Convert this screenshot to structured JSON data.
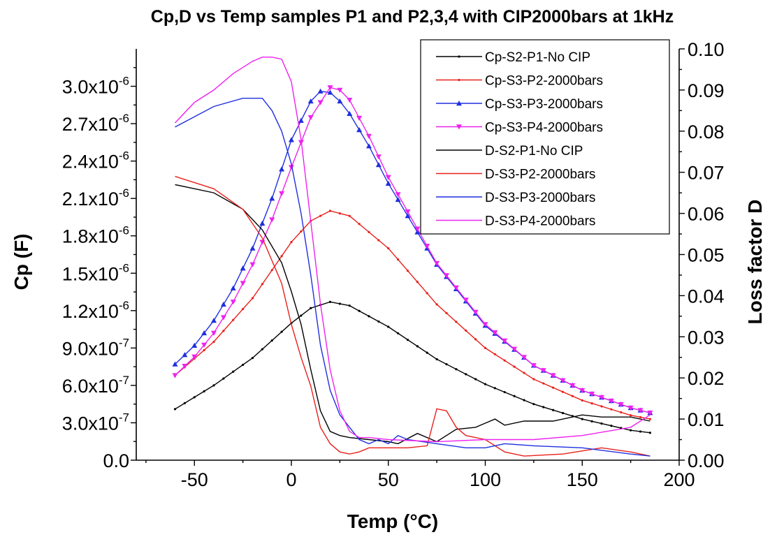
{
  "chart_data": {
    "type": "line",
    "title": "Cp,D vs Temp samples P1 and P2,3,4 with CIP2000bars at 1kHz",
    "xlabel": "Temp (°C)",
    "ylabel": "Cp (F)",
    "y2label": "Loss factor D",
    "xlim": [
      -80,
      200
    ],
    "ylim": [
      0,
      3.3e-06
    ],
    "y2lim": [
      0,
      0.1
    ],
    "x_ticks": [
      -50,
      0,
      50,
      100,
      150,
      200
    ],
    "y_ticks": [
      {
        "value": 0,
        "mant": "0.0",
        "exp": ""
      },
      {
        "value": 3e-07,
        "mant": "3.0x10",
        "exp": "-7"
      },
      {
        "value": 6e-07,
        "mant": "6.0x10",
        "exp": "-7"
      },
      {
        "value": 9e-07,
        "mant": "9.0x10",
        "exp": "-7"
      },
      {
        "value": 1.2e-06,
        "mant": "1.2x10",
        "exp": "-6"
      },
      {
        "value": 1.5e-06,
        "mant": "1.5x10",
        "exp": "-6"
      },
      {
        "value": 1.8e-06,
        "mant": "1.8x10",
        "exp": "-6"
      },
      {
        "value": 2.1e-06,
        "mant": "2.1x10",
        "exp": "-6"
      },
      {
        "value": 2.4e-06,
        "mant": "2.4x10",
        "exp": "-6"
      },
      {
        "value": 2.7e-06,
        "mant": "2.7x10",
        "exp": "-6"
      },
      {
        "value": 3e-06,
        "mant": "3.0x10",
        "exp": "-6"
      }
    ],
    "y2_ticks": [
      "0.00",
      "0.01",
      "0.02",
      "0.03",
      "0.04",
      "0.05",
      "0.06",
      "0.07",
      "0.08",
      "0.09",
      "0.10"
    ],
    "legend_position": "top-right",
    "series": [
      {
        "name": "Cp-S2-P1-No CIP",
        "axis": "left",
        "color": "#000000",
        "marker": "dot",
        "x": [
          -60,
          -40,
          -20,
          0,
          10,
          20,
          30,
          50,
          75,
          100,
          125,
          150,
          175,
          185
        ],
        "y": [
          4.1e-07,
          6e-07,
          8.2e-07,
          1.1e-06,
          1.22e-06,
          1.27e-06,
          1.24e-06,
          1.07e-06,
          8.1e-07,
          6.1e-07,
          4.5e-07,
          3.3e-07,
          2.4e-07,
          2.2e-07
        ]
      },
      {
        "name": "Cp-S3-P2-2000bars",
        "axis": "left",
        "color": "#e8201a",
        "marker": "dot",
        "x": [
          -60,
          -40,
          -20,
          0,
          10,
          20,
          30,
          50,
          75,
          100,
          125,
          150,
          175,
          185
        ],
        "y": [
          6.8e-07,
          9.5e-07,
          1.3e-06,
          1.75e-06,
          1.92e-06,
          2e-06,
          1.96e-06,
          1.7e-06,
          1.25e-06,
          9e-07,
          6.5e-07,
          4.8e-07,
          3.6e-07,
          3.3e-07
        ]
      },
      {
        "name": "Cp-S3-P3-2000bars",
        "axis": "left",
        "color": "#1f2fe0",
        "marker": "triangle-up",
        "x": [
          -60,
          -50,
          -40,
          -30,
          -20,
          -10,
          0,
          10,
          15,
          20,
          25,
          30,
          40,
          50,
          75,
          100,
          125,
          150,
          175,
          185
        ],
        "y": [
          7.7e-07,
          9.2e-07,
          1.12e-06,
          1.38e-06,
          1.7e-06,
          2.1e-06,
          2.57e-06,
          2.88e-06,
          2.96e-06,
          2.95e-06,
          2.88e-06,
          2.78e-06,
          2.52e-06,
          2.22e-06,
          1.57e-06,
          1.08e-06,
          7.6e-07,
          5.6e-07,
          4.2e-07,
          3.8e-07
        ]
      },
      {
        "name": "Cp-S3-P4-2000bars",
        "axis": "left",
        "color": "#ee22ee",
        "marker": "triangle-down",
        "x": [
          -60,
          -50,
          -40,
          -30,
          -20,
          -10,
          0,
          10,
          20,
          25,
          30,
          40,
          50,
          75,
          100,
          125,
          150,
          175,
          185
        ],
        "y": [
          6.8e-07,
          8.3e-07,
          1.02e-06,
          1.27e-06,
          1.57e-06,
          1.93e-06,
          2.35e-06,
          2.75e-06,
          2.99e-06,
          2.97e-06,
          2.89e-06,
          2.6e-06,
          2.27e-06,
          1.58e-06,
          1.09e-06,
          7.6e-07,
          5.6e-07,
          4.2e-07,
          3.8e-07
        ]
      },
      {
        "name": "D-S2-P1-No CIP",
        "axis": "right",
        "color": "#000000",
        "marker": "none",
        "x": [
          -60,
          -40,
          -25,
          -15,
          -5,
          0,
          5,
          10,
          15,
          20,
          25,
          30,
          40,
          50,
          55,
          65,
          75,
          85,
          95,
          100,
          105,
          110,
          120,
          135,
          150,
          160,
          175,
          185
        ],
        "y": [
          0.067,
          0.065,
          0.061,
          0.056,
          0.048,
          0.041,
          0.033,
          0.022,
          0.012,
          0.007,
          0.006,
          0.0055,
          0.005,
          0.0045,
          0.004,
          0.0065,
          0.0045,
          0.0075,
          0.008,
          0.009,
          0.01,
          0.0085,
          0.0095,
          0.0095,
          0.011,
          0.0105,
          0.0105,
          0.0095
        ]
      },
      {
        "name": "D-S3-P2-2000bars",
        "axis": "right",
        "color": "#e8201a",
        "marker": "none",
        "x": [
          -60,
          -40,
          -25,
          -15,
          -5,
          0,
          5,
          10,
          15,
          20,
          25,
          30,
          35,
          40,
          50,
          60,
          70,
          75,
          80,
          85,
          90,
          100,
          110,
          120,
          140,
          160,
          175,
          185
        ],
        "y": [
          0.069,
          0.066,
          0.061,
          0.054,
          0.043,
          0.033,
          0.025,
          0.018,
          0.008,
          0.004,
          0.002,
          0.0015,
          0.002,
          0.003,
          0.003,
          0.003,
          0.0035,
          0.0125,
          0.012,
          0.008,
          0.006,
          0.005,
          0.002,
          0.001,
          0.0015,
          0.003,
          0.002,
          0.001
        ]
      },
      {
        "name": "D-S3-P3-2000bars",
        "axis": "right",
        "color": "#1f2fe0",
        "marker": "none",
        "x": [
          -60,
          -40,
          -25,
          -15,
          -10,
          -5,
          0,
          5,
          10,
          15,
          20,
          25,
          30,
          35,
          40,
          45,
          50,
          55,
          60,
          75,
          90,
          100,
          110,
          125,
          150,
          175,
          185
        ],
        "y": [
          0.081,
          0.086,
          0.088,
          0.088,
          0.085,
          0.08,
          0.072,
          0.06,
          0.045,
          0.028,
          0.017,
          0.011,
          0.008,
          0.005,
          0.004,
          0.005,
          0.004,
          0.006,
          0.005,
          0.004,
          0.003,
          0.003,
          0.004,
          0.0035,
          0.003,
          0.0015,
          0.001
        ]
      },
      {
        "name": "D-S3-P4-2000bars",
        "axis": "right",
        "color": "#ee22ee",
        "marker": "none",
        "x": [
          -60,
          -50,
          -40,
          -30,
          -20,
          -15,
          -10,
          -5,
          0,
          5,
          10,
          15,
          20,
          25,
          30,
          35,
          40,
          50,
          75,
          100,
          125,
          150,
          175,
          185
        ],
        "y": [
          0.082,
          0.087,
          0.09,
          0.094,
          0.097,
          0.098,
          0.098,
          0.0975,
          0.092,
          0.078,
          0.058,
          0.038,
          0.022,
          0.012,
          0.007,
          0.0055,
          0.0055,
          0.005,
          0.0045,
          0.005,
          0.005,
          0.006,
          0.008,
          0.011
        ]
      }
    ]
  }
}
